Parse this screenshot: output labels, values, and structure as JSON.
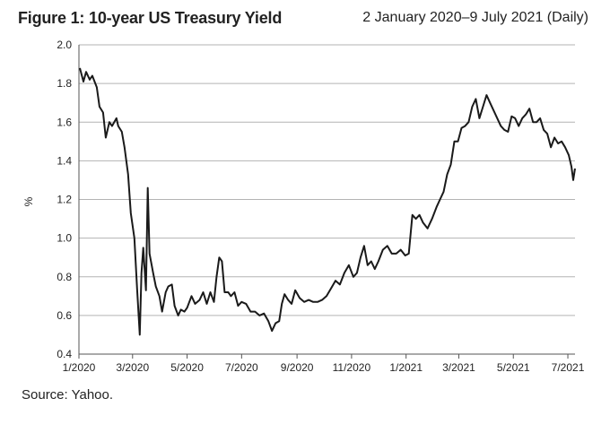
{
  "header": {
    "title": "Figure 1: 10-year US Treasury Yield",
    "subtitle": "2 January 2020–9 July 2021 (Daily)"
  },
  "footer": {
    "source": "Source: Yahoo."
  },
  "chart_data": {
    "type": "line",
    "title": "Figure 1: 10-year US Treasury Yield",
    "subtitle": "2 January 2020–9 July 2021 (Daily)",
    "xlabel": "",
    "ylabel": "%",
    "ylim": [
      0.4,
      2.0
    ],
    "yticks": [
      0.4,
      0.6,
      0.8,
      1.0,
      1.2,
      1.4,
      1.6,
      1.8,
      2.0
    ],
    "ytick_labels": [
      "0.4",
      "0.6",
      "0.8",
      "1.0",
      "1.2",
      "1.4",
      "1.6",
      "1.8",
      "2.0"
    ],
    "xlim": [
      "2020-01-01",
      "2021-07-09"
    ],
    "xticks": [
      {
        "date": "2020-01-01",
        "label": "1/2020"
      },
      {
        "date": "2020-03-01",
        "label": "3/2020"
      },
      {
        "date": "2020-05-01",
        "label": "5/2020"
      },
      {
        "date": "2020-07-01",
        "label": "7/2020"
      },
      {
        "date": "2020-09-01",
        "label": "9/2020"
      },
      {
        "date": "2020-11-01",
        "label": "11/2020"
      },
      {
        "date": "2021-01-01",
        "label": "1/2021"
      },
      {
        "date": "2021-03-01",
        "label": "3/2021"
      },
      {
        "date": "2021-05-01",
        "label": "5/2021"
      },
      {
        "date": "2021-07-01",
        "label": "7/2021"
      }
    ],
    "grid": "horizontal",
    "color": "#1a1a1a",
    "series": [
      {
        "points": [
          [
            "2020-01-02",
            1.88
          ],
          [
            "2020-01-06",
            1.81
          ],
          [
            "2020-01-09",
            1.86
          ],
          [
            "2020-01-13",
            1.82
          ],
          [
            "2020-01-16",
            1.84
          ],
          [
            "2020-01-21",
            1.78
          ],
          [
            "2020-01-24",
            1.68
          ],
          [
            "2020-01-28",
            1.65
          ],
          [
            "2020-01-31",
            1.52
          ],
          [
            "2020-02-04",
            1.6
          ],
          [
            "2020-02-07",
            1.58
          ],
          [
            "2020-02-12",
            1.62
          ],
          [
            "2020-02-14",
            1.58
          ],
          [
            "2020-02-18",
            1.55
          ],
          [
            "2020-02-21",
            1.47
          ],
          [
            "2020-02-25",
            1.33
          ],
          [
            "2020-02-28",
            1.13
          ],
          [
            "2020-03-03",
            1.0
          ],
          [
            "2020-03-06",
            0.74
          ],
          [
            "2020-03-09",
            0.5
          ],
          [
            "2020-03-11",
            0.82
          ],
          [
            "2020-03-13",
            0.95
          ],
          [
            "2020-03-16",
            0.73
          ],
          [
            "2020-03-18",
            1.26
          ],
          [
            "2020-03-20",
            0.92
          ],
          [
            "2020-03-24",
            0.82
          ],
          [
            "2020-03-27",
            0.75
          ],
          [
            "2020-03-31",
            0.7
          ],
          [
            "2020-04-03",
            0.62
          ],
          [
            "2020-04-07",
            0.72
          ],
          [
            "2020-04-10",
            0.75
          ],
          [
            "2020-04-14",
            0.76
          ],
          [
            "2020-04-17",
            0.65
          ],
          [
            "2020-04-21",
            0.6
          ],
          [
            "2020-04-24",
            0.63
          ],
          [
            "2020-04-28",
            0.62
          ],
          [
            "2020-05-01",
            0.64
          ],
          [
            "2020-05-06",
            0.7
          ],
          [
            "2020-05-10",
            0.66
          ],
          [
            "2020-05-15",
            0.68
          ],
          [
            "2020-05-19",
            0.72
          ],
          [
            "2020-05-23",
            0.66
          ],
          [
            "2020-05-27",
            0.72
          ],
          [
            "2020-05-31",
            0.67
          ],
          [
            "2020-06-03",
            0.8
          ],
          [
            "2020-06-06",
            0.9
          ],
          [
            "2020-06-09",
            0.88
          ],
          [
            "2020-06-12",
            0.72
          ],
          [
            "2020-06-16",
            0.72
          ],
          [
            "2020-06-19",
            0.7
          ],
          [
            "2020-06-23",
            0.72
          ],
          [
            "2020-06-27",
            0.65
          ],
          [
            "2020-07-01",
            0.67
          ],
          [
            "2020-07-06",
            0.66
          ],
          [
            "2020-07-11",
            0.62
          ],
          [
            "2020-07-16",
            0.62
          ],
          [
            "2020-07-21",
            0.6
          ],
          [
            "2020-07-26",
            0.61
          ],
          [
            "2020-07-31",
            0.57
          ],
          [
            "2020-08-04",
            0.52
          ],
          [
            "2020-08-08",
            0.56
          ],
          [
            "2020-08-12",
            0.57
          ],
          [
            "2020-08-15",
            0.66
          ],
          [
            "2020-08-18",
            0.71
          ],
          [
            "2020-08-22",
            0.68
          ],
          [
            "2020-08-26",
            0.66
          ],
          [
            "2020-08-30",
            0.73
          ],
          [
            "2020-09-04",
            0.69
          ],
          [
            "2020-09-09",
            0.67
          ],
          [
            "2020-09-14",
            0.68
          ],
          [
            "2020-09-19",
            0.67
          ],
          [
            "2020-09-24",
            0.67
          ],
          [
            "2020-09-29",
            0.68
          ],
          [
            "2020-10-04",
            0.7
          ],
          [
            "2020-10-09",
            0.74
          ],
          [
            "2020-10-14",
            0.78
          ],
          [
            "2020-10-19",
            0.76
          ],
          [
            "2020-10-24",
            0.82
          ],
          [
            "2020-10-29",
            0.86
          ],
          [
            "2020-11-03",
            0.8
          ],
          [
            "2020-11-07",
            0.82
          ],
          [
            "2020-11-11",
            0.9
          ],
          [
            "2020-11-15",
            0.96
          ],
          [
            "2020-11-19",
            0.86
          ],
          [
            "2020-11-23",
            0.88
          ],
          [
            "2020-11-27",
            0.84
          ],
          [
            "2020-12-01",
            0.88
          ],
          [
            "2020-12-06",
            0.94
          ],
          [
            "2020-12-11",
            0.96
          ],
          [
            "2020-12-16",
            0.92
          ],
          [
            "2020-12-21",
            0.92
          ],
          [
            "2020-12-26",
            0.94
          ],
          [
            "2020-12-31",
            0.91
          ],
          [
            "2021-01-04",
            0.92
          ],
          [
            "2021-01-08",
            1.12
          ],
          [
            "2021-01-12",
            1.1
          ],
          [
            "2021-01-16",
            1.12
          ],
          [
            "2021-01-20",
            1.08
          ],
          [
            "2021-01-25",
            1.05
          ],
          [
            "2021-01-30",
            1.1
          ],
          [
            "2021-02-04",
            1.16
          ],
          [
            "2021-02-08",
            1.2
          ],
          [
            "2021-02-12",
            1.24
          ],
          [
            "2021-02-16",
            1.33
          ],
          [
            "2021-02-20",
            1.38
          ],
          [
            "2021-02-24",
            1.5
          ],
          [
            "2021-02-28",
            1.5
          ],
          [
            "2021-03-04",
            1.57
          ],
          [
            "2021-03-08",
            1.58
          ],
          [
            "2021-03-12",
            1.6
          ],
          [
            "2021-03-16",
            1.68
          ],
          [
            "2021-03-20",
            1.72
          ],
          [
            "2021-03-24",
            1.62
          ],
          [
            "2021-03-28",
            1.68
          ],
          [
            "2021-04-01",
            1.74
          ],
          [
            "2021-04-05",
            1.7
          ],
          [
            "2021-04-09",
            1.66
          ],
          [
            "2021-04-13",
            1.62
          ],
          [
            "2021-04-17",
            1.58
          ],
          [
            "2021-04-21",
            1.56
          ],
          [
            "2021-04-25",
            1.55
          ],
          [
            "2021-04-29",
            1.63
          ],
          [
            "2021-05-03",
            1.62
          ],
          [
            "2021-05-07",
            1.58
          ],
          [
            "2021-05-11",
            1.62
          ],
          [
            "2021-05-15",
            1.64
          ],
          [
            "2021-05-19",
            1.67
          ],
          [
            "2021-05-23",
            1.6
          ],
          [
            "2021-05-27",
            1.6
          ],
          [
            "2021-05-31",
            1.62
          ],
          [
            "2021-06-04",
            1.56
          ],
          [
            "2021-06-08",
            1.54
          ],
          [
            "2021-06-12",
            1.47
          ],
          [
            "2021-06-16",
            1.52
          ],
          [
            "2021-06-20",
            1.49
          ],
          [
            "2021-06-24",
            1.5
          ],
          [
            "2021-06-28",
            1.47
          ],
          [
            "2021-07-02",
            1.43
          ],
          [
            "2021-07-05",
            1.37
          ],
          [
            "2021-07-07",
            1.3
          ],
          [
            "2021-07-09",
            1.36
          ]
        ]
      }
    ]
  }
}
